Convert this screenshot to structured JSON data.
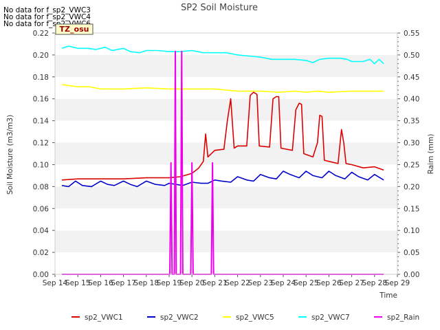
{
  "notes": [
    "No data for f_sp2_VWC3",
    "No data for f_sp2_VWC4",
    "No data for f_sp2_VWC6"
  ],
  "site_badge": "TZ_osu",
  "chart_data": {
    "type": "line",
    "title": "SP2 Soil Moisture",
    "xlabel": "Time",
    "ylabel": "Soil Moisture (m3/m3)",
    "y2label": "Raim (mm)",
    "xlim": [
      14,
      29
    ],
    "ylim": [
      0,
      0.22
    ],
    "y2lim": [
      0,
      0.55
    ],
    "xticks": [
      14,
      15,
      16,
      17,
      18,
      19,
      20,
      21,
      22,
      23,
      24,
      25,
      26,
      27,
      28,
      29
    ],
    "xtick_labels": [
      "Sep 14",
      "Sep 15",
      "Sep 16",
      "Sep 17",
      "Sep 18",
      "Sep 19",
      "Sep 20",
      "Sep 21",
      "Sep 22",
      "Sep 23",
      "Sep 24",
      "Sep 25",
      "Sep 26",
      "Sep 27",
      "Sep 28",
      "Sep 29"
    ],
    "yticks": [
      "0.00",
      "0.02",
      "0.04",
      "0.06",
      "0.08",
      "0.10",
      "0.12",
      "0.14",
      "0.16",
      "0.18",
      "0.20",
      "0.22"
    ],
    "y2ticks": [
      "0.00",
      "0.05",
      "0.10",
      "0.15",
      "0.20",
      "0.25",
      "0.30",
      "0.35",
      "0.40",
      "0.45",
      "0.50",
      "0.55"
    ],
    "grid": "horizontal bands",
    "legend_position": "bottom",
    "series": [
      {
        "name": "sp2_VWC1",
        "color": "#dd0000",
        "axis": "left",
        "points": [
          [
            14.3,
            0.086
          ],
          [
            15,
            0.087
          ],
          [
            16,
            0.087
          ],
          [
            17,
            0.087
          ],
          [
            18,
            0.088
          ],
          [
            19,
            0.088
          ],
          [
            19.5,
            0.089
          ],
          [
            20,
            0.092
          ],
          [
            20.3,
            0.097
          ],
          [
            20.5,
            0.103
          ],
          [
            20.6,
            0.128
          ],
          [
            20.7,
            0.107
          ],
          [
            21,
            0.113
          ],
          [
            21.4,
            0.114
          ],
          [
            21.55,
            0.14
          ],
          [
            21.7,
            0.16
          ],
          [
            21.85,
            0.115
          ],
          [
            22,
            0.117
          ],
          [
            22.4,
            0.117
          ],
          [
            22.55,
            0.163
          ],
          [
            22.7,
            0.166
          ],
          [
            22.85,
            0.164
          ],
          [
            22.95,
            0.117
          ],
          [
            23.4,
            0.116
          ],
          [
            23.55,
            0.16
          ],
          [
            23.7,
            0.162
          ],
          [
            23.8,
            0.162
          ],
          [
            23.9,
            0.115
          ],
          [
            24.4,
            0.113
          ],
          [
            24.55,
            0.15
          ],
          [
            24.7,
            0.156
          ],
          [
            24.8,
            0.155
          ],
          [
            24.9,
            0.11
          ],
          [
            25.3,
            0.107
          ],
          [
            25.5,
            0.12
          ],
          [
            25.6,
            0.145
          ],
          [
            25.7,
            0.144
          ],
          [
            25.8,
            0.104
          ],
          [
            26.2,
            0.102
          ],
          [
            26.4,
            0.101
          ],
          [
            26.55,
            0.132
          ],
          [
            26.65,
            0.12
          ],
          [
            26.75,
            0.101
          ],
          [
            27,
            0.1
          ],
          [
            27.5,
            0.097
          ],
          [
            28,
            0.098
          ],
          [
            28.4,
            0.095
          ]
        ]
      },
      {
        "name": "sp2_VWC2",
        "color": "#0000cc",
        "axis": "left",
        "points": [
          [
            14.3,
            0.081
          ],
          [
            14.6,
            0.08
          ],
          [
            14.9,
            0.085
          ],
          [
            15.2,
            0.081
          ],
          [
            15.6,
            0.08
          ],
          [
            16,
            0.085
          ],
          [
            16.3,
            0.082
          ],
          [
            16.6,
            0.081
          ],
          [
            17,
            0.085
          ],
          [
            17.3,
            0.082
          ],
          [
            17.6,
            0.08
          ],
          [
            18,
            0.085
          ],
          [
            18.4,
            0.082
          ],
          [
            18.8,
            0.081
          ],
          [
            19,
            0.083
          ],
          [
            19.3,
            0.082
          ],
          [
            19.6,
            0.081
          ],
          [
            20,
            0.084
          ],
          [
            20.4,
            0.083
          ],
          [
            20.7,
            0.083
          ],
          [
            21,
            0.086
          ],
          [
            21.3,
            0.085
          ],
          [
            21.7,
            0.084
          ],
          [
            22,
            0.089
          ],
          [
            22.4,
            0.086
          ],
          [
            22.7,
            0.085
          ],
          [
            23,
            0.091
          ],
          [
            23.4,
            0.088
          ],
          [
            23.7,
            0.087
          ],
          [
            24,
            0.094
          ],
          [
            24.3,
            0.091
          ],
          [
            24.7,
            0.088
          ],
          [
            25,
            0.094
          ],
          [
            25.3,
            0.09
          ],
          [
            25.7,
            0.088
          ],
          [
            26,
            0.094
          ],
          [
            26.3,
            0.09
          ],
          [
            26.7,
            0.087
          ],
          [
            27,
            0.093
          ],
          [
            27.3,
            0.089
          ],
          [
            27.7,
            0.086
          ],
          [
            28,
            0.091
          ],
          [
            28.4,
            0.086
          ]
        ]
      },
      {
        "name": "sp2_VWC5",
        "color": "#ffff00",
        "axis": "left",
        "points": [
          [
            14.3,
            0.173
          ],
          [
            15,
            0.171
          ],
          [
            15.5,
            0.171
          ],
          [
            16,
            0.169
          ],
          [
            17,
            0.169
          ],
          [
            18,
            0.17
          ],
          [
            19,
            0.169
          ],
          [
            20,
            0.169
          ],
          [
            21,
            0.169
          ],
          [
            22,
            0.167
          ],
          [
            23,
            0.167
          ],
          [
            23.8,
            0.166
          ],
          [
            24.5,
            0.167
          ],
          [
            25,
            0.166
          ],
          [
            25.5,
            0.167
          ],
          [
            26,
            0.166
          ],
          [
            27,
            0.167
          ],
          [
            28,
            0.167
          ],
          [
            28.4,
            0.167
          ]
        ]
      },
      {
        "name": "sp2_VWC7",
        "color": "#00ffff",
        "axis": "left",
        "points": [
          [
            14.3,
            0.206
          ],
          [
            14.6,
            0.208
          ],
          [
            15,
            0.206
          ],
          [
            15.4,
            0.206
          ],
          [
            15.8,
            0.205
          ],
          [
            16.2,
            0.207
          ],
          [
            16.5,
            0.204
          ],
          [
            17,
            0.206
          ],
          [
            17.3,
            0.203
          ],
          [
            17.7,
            0.202
          ],
          [
            18,
            0.204
          ],
          [
            18.5,
            0.204
          ],
          [
            19,
            0.203
          ],
          [
            19.5,
            0.203
          ],
          [
            20,
            0.204
          ],
          [
            20.5,
            0.202
          ],
          [
            21,
            0.202
          ],
          [
            21.5,
            0.202
          ],
          [
            22,
            0.2
          ],
          [
            22.5,
            0.199
          ],
          [
            23,
            0.198
          ],
          [
            23.5,
            0.196
          ],
          [
            24,
            0.196
          ],
          [
            24.5,
            0.196
          ],
          [
            25,
            0.195
          ],
          [
            25.3,
            0.193
          ],
          [
            25.6,
            0.196
          ],
          [
            26,
            0.197
          ],
          [
            26.5,
            0.197
          ],
          [
            26.8,
            0.196
          ],
          [
            27,
            0.194
          ],
          [
            27.5,
            0.194
          ],
          [
            27.8,
            0.196
          ],
          [
            28,
            0.192
          ],
          [
            28.2,
            0.196
          ],
          [
            28.4,
            0.192
          ]
        ]
      },
      {
        "name": "sp2_Rain",
        "color": "#ee00ee",
        "axis": "right",
        "points": [
          [
            14.3,
            0
          ],
          [
            19.03,
            0
          ],
          [
            19.08,
            0.254
          ],
          [
            19.13,
            0
          ],
          [
            19.23,
            0
          ],
          [
            19.27,
            0.508
          ],
          [
            19.31,
            0
          ],
          [
            19.5,
            0
          ],
          [
            19.55,
            0.508
          ],
          [
            19.6,
            0
          ],
          [
            19.95,
            0
          ],
          [
            20,
            0.254
          ],
          [
            20.05,
            0
          ],
          [
            20.85,
            0
          ],
          [
            20.9,
            0.254
          ],
          [
            20.95,
            0
          ],
          [
            28.4,
            0
          ]
        ]
      }
    ]
  }
}
